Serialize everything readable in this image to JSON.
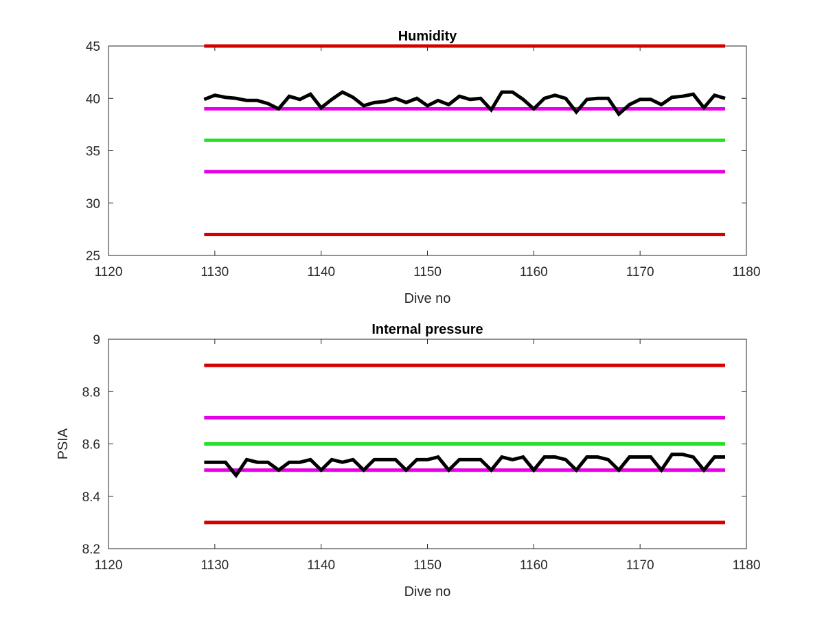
{
  "colors": {
    "red_limit": "#d40000",
    "magenta_limit": "#e600e6",
    "green_target": "#22e022",
    "data_line": "#000000",
    "axis": "#262626"
  },
  "chart_data": [
    {
      "type": "line",
      "title": "Humidity",
      "xlabel": "Dive no",
      "ylabel": "",
      "xlim": [
        1120,
        1180
      ],
      "ylim": [
        25,
        45
      ],
      "xticks": [
        1120,
        1130,
        1140,
        1150,
        1160,
        1170,
        1180
      ],
      "yticks": [
        25,
        30,
        35,
        40,
        45
      ],
      "grid": false,
      "series": [
        {
          "role": "limit",
          "color": "red_limit",
          "x": [
            1129,
            1178
          ],
          "y": [
            45,
            45
          ]
        },
        {
          "role": "limit",
          "color": "magenta_limit",
          "x": [
            1129,
            1178
          ],
          "y": [
            39,
            39
          ]
        },
        {
          "role": "target",
          "color": "green_target",
          "x": [
            1129,
            1178
          ],
          "y": [
            36,
            36
          ]
        },
        {
          "role": "limit",
          "color": "magenta_limit",
          "x": [
            1129,
            1178
          ],
          "y": [
            33,
            33
          ]
        },
        {
          "role": "limit",
          "color": "red_limit",
          "x": [
            1129,
            1178
          ],
          "y": [
            27,
            27
          ]
        },
        {
          "role": "data",
          "color": "data_line",
          "x": [
            1129,
            1130,
            1131,
            1132,
            1133,
            1134,
            1135,
            1136,
            1137,
            1138,
            1139,
            1140,
            1141,
            1142,
            1143,
            1144,
            1145,
            1146,
            1147,
            1148,
            1149,
            1150,
            1151,
            1152,
            1153,
            1154,
            1155,
            1156,
            1157,
            1158,
            1159,
            1160,
            1161,
            1162,
            1163,
            1164,
            1165,
            1166,
            1167,
            1168,
            1169,
            1170,
            1171,
            1172,
            1173,
            1174,
            1175,
            1176,
            1177,
            1178
          ],
          "y": [
            39.9,
            40.3,
            40.1,
            40.0,
            39.8,
            39.8,
            39.5,
            39.0,
            40.2,
            39.9,
            40.4,
            39.1,
            39.9,
            40.6,
            40.1,
            39.3,
            39.6,
            39.7,
            40.0,
            39.6,
            40.0,
            39.3,
            39.8,
            39.4,
            40.2,
            39.9,
            40.0,
            38.9,
            40.6,
            40.6,
            39.9,
            39.0,
            40.0,
            40.3,
            40.0,
            38.7,
            39.9,
            40.0,
            40.0,
            38.5,
            39.4,
            39.9,
            39.9,
            39.4,
            40.1,
            40.2,
            40.4,
            39.1,
            40.3,
            40.0
          ]
        }
      ]
    },
    {
      "type": "line",
      "title": "Internal pressure",
      "xlabel": "Dive no",
      "ylabel": "PSIA",
      "xlim": [
        1120,
        1180
      ],
      "ylim": [
        8.2,
        9.0
      ],
      "xticks": [
        1120,
        1130,
        1140,
        1150,
        1160,
        1170,
        1180
      ],
      "yticks": [
        8.2,
        8.4,
        8.6,
        8.8,
        9.0
      ],
      "ytick_labels": [
        "8.2",
        "8.4",
        "8.6",
        "8.8",
        "9"
      ],
      "grid": false,
      "series": [
        {
          "role": "limit",
          "color": "red_limit",
          "x": [
            1129,
            1178
          ],
          "y": [
            8.9,
            8.9
          ]
        },
        {
          "role": "limit",
          "color": "magenta_limit",
          "x": [
            1129,
            1178
          ],
          "y": [
            8.7,
            8.7
          ]
        },
        {
          "role": "target",
          "color": "green_target",
          "x": [
            1129,
            1178
          ],
          "y": [
            8.6,
            8.6
          ]
        },
        {
          "role": "limit",
          "color": "magenta_limit",
          "x": [
            1129,
            1178
          ],
          "y": [
            8.5,
            8.5
          ]
        },
        {
          "role": "limit",
          "color": "red_limit",
          "x": [
            1129,
            1178
          ],
          "y": [
            8.3,
            8.3
          ]
        },
        {
          "role": "data",
          "color": "data_line",
          "x": [
            1129,
            1130,
            1131,
            1132,
            1133,
            1134,
            1135,
            1136,
            1137,
            1138,
            1139,
            1140,
            1141,
            1142,
            1143,
            1144,
            1145,
            1146,
            1147,
            1148,
            1149,
            1150,
            1151,
            1152,
            1153,
            1154,
            1155,
            1156,
            1157,
            1158,
            1159,
            1160,
            1161,
            1162,
            1163,
            1164,
            1165,
            1166,
            1167,
            1168,
            1169,
            1170,
            1171,
            1172,
            1173,
            1174,
            1175,
            1176,
            1177,
            1178
          ],
          "y": [
            8.53,
            8.53,
            8.53,
            8.48,
            8.54,
            8.53,
            8.53,
            8.5,
            8.53,
            8.53,
            8.54,
            8.5,
            8.54,
            8.53,
            8.54,
            8.5,
            8.54,
            8.54,
            8.54,
            8.5,
            8.54,
            8.54,
            8.55,
            8.5,
            8.54,
            8.54,
            8.54,
            8.5,
            8.55,
            8.54,
            8.55,
            8.5,
            8.55,
            8.55,
            8.54,
            8.5,
            8.55,
            8.55,
            8.54,
            8.5,
            8.55,
            8.55,
            8.55,
            8.5,
            8.56,
            8.56,
            8.55,
            8.5,
            8.55,
            8.55
          ]
        }
      ]
    }
  ]
}
